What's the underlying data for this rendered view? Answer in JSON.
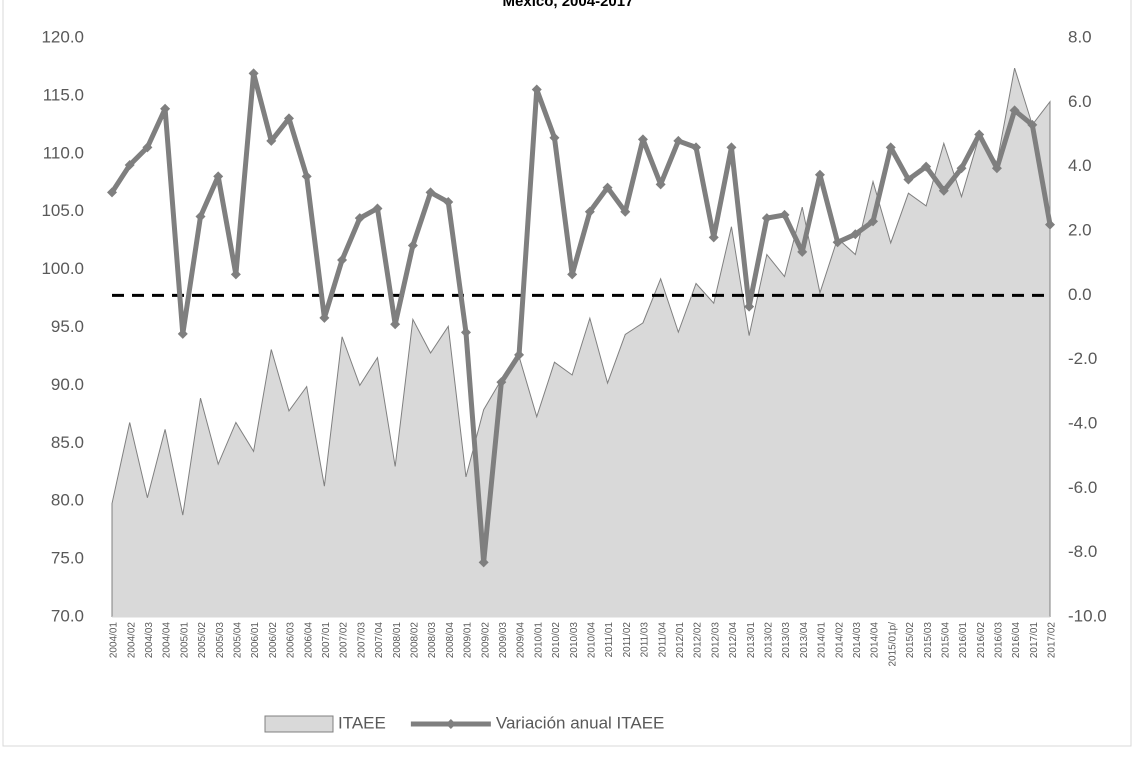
{
  "chart_data": {
    "type": "area-line",
    "title": "México, 2004-2017",
    "categories": [
      "2004/01",
      "2004/02",
      "2004/03",
      "2004/04",
      "2005/01",
      "2005/02",
      "2005/03",
      "2005/04",
      "2006/01",
      "2006/02",
      "2006/03",
      "2006/04",
      "2007/01",
      "2007/02",
      "2007/03",
      "2007/04",
      "2008/01",
      "2008/02",
      "2008/03",
      "2008/04",
      "2009/01",
      "2009/02",
      "2009/03",
      "2009/04",
      "2010/01",
      "2010/02",
      "2010/03",
      "2010/04",
      "2011/01",
      "2011/02",
      "2011/03",
      "2011/04",
      "2012/01",
      "2012/02",
      "2012/03",
      "2012/04",
      "2013/01",
      "2013/02",
      "2013/03",
      "2013/04",
      "2014/01",
      "2014/02",
      "2014/03",
      "2014/04",
      "2015/01p/",
      "2015/02",
      "2015/03",
      "2015/04",
      "2016/01",
      "2016/02",
      "2016/03",
      "2016/04",
      "2017/01",
      "2017/02"
    ],
    "series": [
      {
        "name": "ITAEE",
        "type": "area",
        "axis": "y",
        "color": "#d9d9d9",
        "stroke": "#808080",
        "values": [
          79.8,
          86.8,
          80.3,
          86.2,
          78.8,
          88.9,
          83.2,
          86.8,
          84.3,
          93.1,
          87.8,
          89.9,
          81.3,
          94.2,
          90.0,
          92.4,
          83.0,
          95.7,
          92.8,
          95.1,
          82.1,
          87.9,
          90.5,
          92.5,
          87.3,
          92.0,
          90.9,
          95.8,
          90.2,
          94.4,
          95.4,
          99.2,
          94.6,
          98.8,
          97.1,
          103.7,
          94.3,
          101.3,
          99.4,
          105.4,
          98.0,
          102.7,
          101.3,
          107.6,
          102.3,
          106.6,
          105.5,
          110.9,
          106.3,
          111.5,
          109.2,
          117.4,
          112.5,
          114.5
        ]
      },
      {
        "name": "Variación anual ITAEE",
        "type": "line",
        "axis": "y2",
        "color": "#7f7f7f",
        "values": [
          3.2,
          4.05,
          4.6,
          5.8,
          -1.2,
          2.45,
          3.7,
          0.65,
          6.9,
          4.8,
          5.5,
          3.7,
          -0.7,
          1.1,
          2.4,
          2.7,
          -0.9,
          1.55,
          3.2,
          2.9,
          -1.15,
          -8.3,
          -2.7,
          -1.85,
          6.4,
          4.9,
          0.65,
          2.6,
          3.35,
          2.6,
          4.85,
          3.45,
          4.8,
          4.6,
          1.8,
          4.6,
          -0.35,
          2.4,
          2.5,
          1.35,
          3.75,
          1.65,
          1.9,
          2.3,
          4.6,
          3.6,
          4.0,
          3.25,
          3.95,
          5.0,
          3.95,
          5.75,
          5.3,
          2.2
        ]
      }
    ],
    "ylim": [
      70,
      120
    ],
    "yticks": [
      {
        "value": 70,
        "label": "70.0"
      },
      {
        "value": 75,
        "label": "75.0"
      },
      {
        "value": 80,
        "label": "80.0"
      },
      {
        "value": 85,
        "label": "85.0"
      },
      {
        "value": 90,
        "label": "90.0"
      },
      {
        "value": 95,
        "label": "95.0"
      },
      {
        "value": 100,
        "label": "100.0"
      },
      {
        "value": 105,
        "label": "105.0"
      },
      {
        "value": 110,
        "label": "110.0"
      },
      {
        "value": 115,
        "label": "115.0"
      },
      {
        "value": 120,
        "label": "120.0"
      }
    ],
    "y2lim": [
      -10,
      8
    ],
    "y2ticks": [
      {
        "value": -10,
        "label": "-10.0"
      },
      {
        "value": -8,
        "label": "-8.0"
      },
      {
        "value": -6,
        "label": "-6.0"
      },
      {
        "value": -4,
        "label": "-4.0"
      },
      {
        "value": -2,
        "label": "-2.0"
      },
      {
        "value": 0,
        "label": "0.0"
      },
      {
        "value": 2,
        "label": "2.0"
      },
      {
        "value": 4,
        "label": "4.0"
      },
      {
        "value": 6,
        "label": "6.0"
      },
      {
        "value": 8,
        "label": "8.0"
      }
    ],
    "reference_lines": [
      {
        "value": 0,
        "axis": "y2",
        "style": "dashed"
      }
    ],
    "legend": "bottom"
  }
}
